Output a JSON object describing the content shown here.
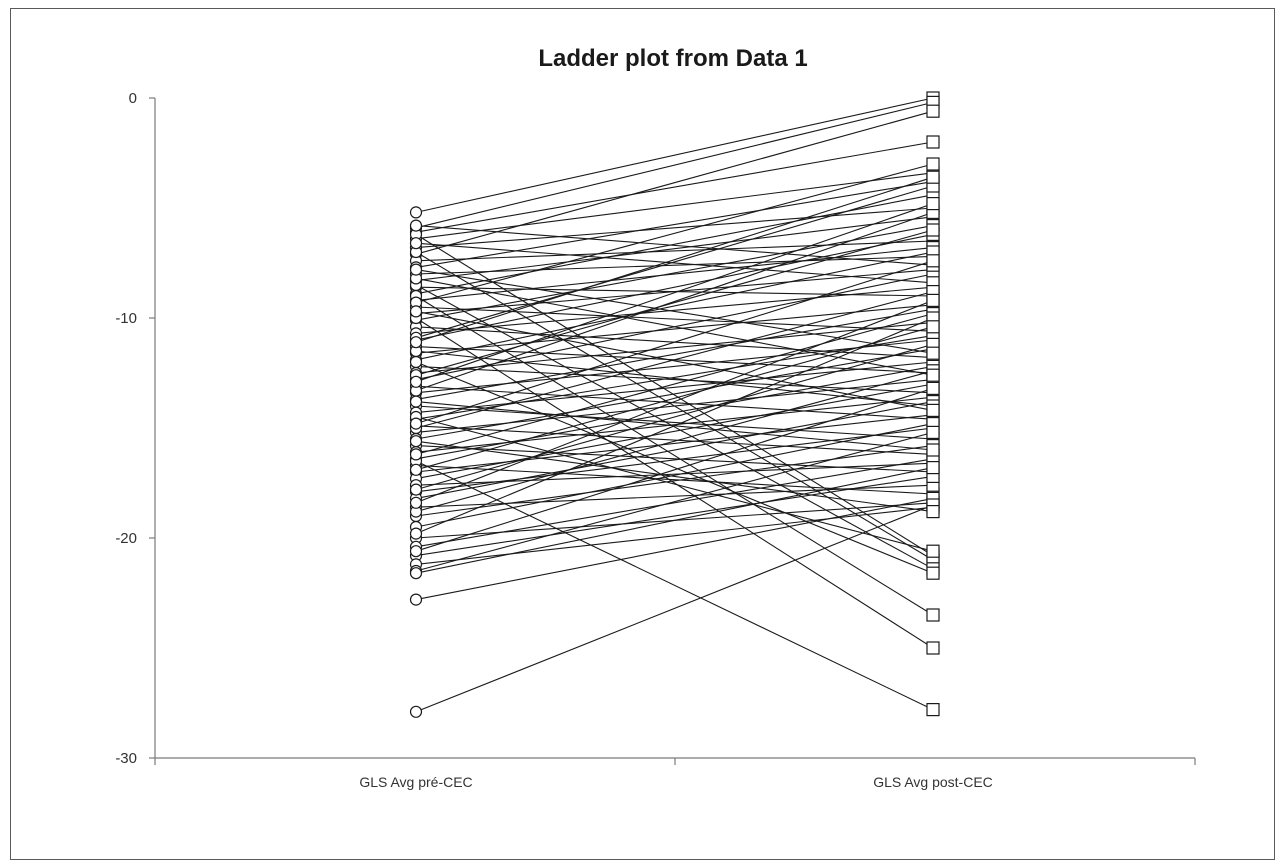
{
  "chart_data": {
    "type": "line",
    "title": "Ladder plot from Data 1",
    "xlabel": "",
    "ylabel": "",
    "categories": [
      "GLS Avg pré-CEC",
      "GLS Avg post-CEC"
    ],
    "ylim": [
      -30,
      0
    ],
    "yticks": [
      0,
      -10,
      -20,
      -30
    ],
    "ytick_labels": [
      "0",
      "-10",
      "-20",
      "-30"
    ],
    "grid": false,
    "legend": "none",
    "markers": [
      "open-circle",
      "open-square"
    ],
    "line_color": "#1a1a1a",
    "pairs": [
      [
        -5.2,
        0.0
      ],
      [
        -5.9,
        -0.2
      ],
      [
        -6.1,
        -2.0
      ],
      [
        -6.4,
        -3.4
      ],
      [
        -6.8,
        -5.0
      ],
      [
        -7.1,
        -0.6
      ],
      [
        -7.4,
        -6.5
      ],
      [
        -7.7,
        -3.8
      ],
      [
        -8.0,
        -7.2
      ],
      [
        -8.3,
        -5.4
      ],
      [
        -8.6,
        -9.0
      ],
      [
        -8.9,
        -4.4
      ],
      [
        -9.2,
        -6.8
      ],
      [
        -9.5,
        -10.6
      ],
      [
        -9.8,
        -7.8
      ],
      [
        -10.1,
        -5.8
      ],
      [
        -10.4,
        -11.8
      ],
      [
        -10.7,
        -8.6
      ],
      [
        -11.0,
        -6.2
      ],
      [
        -11.3,
        -12.5
      ],
      [
        -11.6,
        -9.4
      ],
      [
        -11.9,
        -7.0
      ],
      [
        -12.2,
        -13.4
      ],
      [
        -12.5,
        -10.2
      ],
      [
        -12.8,
        -8.0
      ],
      [
        -13.1,
        -14.6
      ],
      [
        -13.4,
        -11.0
      ],
      [
        -13.7,
        -9.6
      ],
      [
        -14.0,
        -15.5
      ],
      [
        -14.3,
        -12.0
      ],
      [
        -14.6,
        -10.8
      ],
      [
        -14.9,
        -16.2
      ],
      [
        -15.2,
        -12.8
      ],
      [
        -15.5,
        -11.4
      ],
      [
        -15.8,
        -17.0
      ],
      [
        -16.1,
        -13.6
      ],
      [
        -16.4,
        -12.2
      ],
      [
        -16.7,
        -18.0
      ],
      [
        -17.0,
        -14.4
      ],
      [
        -17.3,
        -13.0
      ],
      [
        -17.6,
        -16.6
      ],
      [
        -17.9,
        -15.0
      ],
      [
        -18.2,
        -13.8
      ],
      [
        -18.6,
        -17.6
      ],
      [
        -19.0,
        -15.8
      ],
      [
        -19.5,
        -14.8
      ],
      [
        -20.0,
        -18.4
      ],
      [
        -20.4,
        -16.4
      ],
      [
        -20.8,
        -17.2
      ],
      [
        -21.2,
        -18.6
      ],
      [
        -21.5,
        -15.2
      ],
      [
        -21.6,
        -16.8
      ],
      [
        -6.2,
        -20.8
      ],
      [
        -7.0,
        -21.0
      ],
      [
        -8.5,
        -21.4
      ],
      [
        -9.0,
        -23.5
      ],
      [
        -10.0,
        -25.0
      ],
      [
        -16.5,
        -27.8
      ],
      [
        -12.0,
        -21.6
      ],
      [
        -14.5,
        -20.6
      ],
      [
        -22.8,
        -18.2
      ],
      [
        -27.9,
        -18.5
      ],
      [
        -5.8,
        -7.6
      ],
      [
        -6.6,
        -8.4
      ],
      [
        -9.3,
        -3.0
      ],
      [
        -10.9,
        -4.0
      ],
      [
        -12.6,
        -6.0
      ],
      [
        -13.3,
        -5.2
      ],
      [
        -15.0,
        -8.8
      ],
      [
        -16.2,
        -9.8
      ],
      [
        -17.8,
        -11.2
      ],
      [
        -18.8,
        -12.4
      ],
      [
        -19.8,
        -10.0
      ],
      [
        -20.6,
        -13.2
      ],
      [
        -11.5,
        -14.0
      ],
      [
        -13.8,
        -16.0
      ],
      [
        -15.6,
        -18.8
      ],
      [
        -8.2,
        -12.6
      ],
      [
        -9.7,
        -14.2
      ],
      [
        -7.8,
        -11.6
      ],
      [
        -14.8,
        -7.4
      ],
      [
        -16.9,
        -10.4
      ],
      [
        -18.4,
        -9.2
      ],
      [
        -12.9,
        -4.8
      ],
      [
        -11.1,
        -3.6
      ]
    ]
  }
}
